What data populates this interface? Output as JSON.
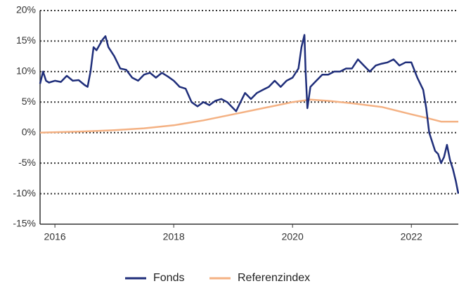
{
  "chart_data": {
    "type": "line",
    "xlim": [
      2015.75,
      2022.79
    ],
    "xticks": [
      2016,
      2018,
      2020,
      2022
    ],
    "ylim": [
      -15,
      20
    ],
    "yticks": [
      {
        "value": -15,
        "label": "-15%"
      },
      {
        "value": -10,
        "label": "-10%"
      },
      {
        "value": -5,
        "label": "-5%"
      },
      {
        "value": 0,
        "label": "0%"
      },
      {
        "value": 5,
        "label": "5%"
      },
      {
        "value": 10,
        "label": "10%"
      },
      {
        "value": 15,
        "label": "15%"
      },
      {
        "value": 20,
        "label": "20%"
      }
    ],
    "grid": true,
    "legend": "bottom",
    "series": [
      {
        "name": "Fonds",
        "color": "#1f2e7a",
        "x": [
          2015.75,
          2015.8,
          2015.85,
          2015.9,
          2016.0,
          2016.1,
          2016.2,
          2016.3,
          2016.4,
          2016.5,
          2016.55,
          2016.6,
          2016.65,
          2016.7,
          2016.8,
          2016.85,
          2016.9,
          2017.0,
          2017.1,
          2017.2,
          2017.3,
          2017.4,
          2017.5,
          2017.6,
          2017.7,
          2017.8,
          2017.9,
          2018.0,
          2018.1,
          2018.2,
          2018.3,
          2018.4,
          2018.5,
          2018.6,
          2018.7,
          2018.8,
          2018.9,
          2019.0,
          2019.05,
          2019.1,
          2019.2,
          2019.3,
          2019.4,
          2019.5,
          2019.6,
          2019.7,
          2019.8,
          2019.9,
          2020.0,
          2020.1,
          2020.15,
          2020.2,
          2020.22,
          2020.25,
          2020.3,
          2020.4,
          2020.5,
          2020.6,
          2020.7,
          2020.8,
          2020.9,
          2021.0,
          2021.1,
          2021.2,
          2021.3,
          2021.4,
          2021.5,
          2021.6,
          2021.7,
          2021.8,
          2021.9,
          2022.0,
          2022.1,
          2022.2,
          2022.25,
          2022.3,
          2022.4,
          2022.45,
          2022.5,
          2022.55,
          2022.6,
          2022.65,
          2022.7,
          2022.75,
          2022.79
        ],
        "values": [
          8,
          10,
          8.5,
          8.2,
          8.5,
          8.3,
          9.3,
          8.5,
          8.6,
          7.8,
          7.5,
          10,
          14,
          13.5,
          15.2,
          15.8,
          14,
          12.5,
          10.5,
          10.3,
          9,
          8.5,
          9.5,
          9.8,
          9,
          9.8,
          9.2,
          8.5,
          7.5,
          7.2,
          5,
          4.3,
          5,
          4.5,
          5.2,
          5.5,
          5,
          4,
          3.5,
          4.5,
          6.5,
          5.5,
          6.5,
          7,
          7.5,
          8.5,
          7.5,
          8.5,
          9,
          10.5,
          14,
          16,
          10,
          4,
          7.5,
          8.5,
          9.5,
          9.5,
          10,
          10,
          10.5,
          10.5,
          12,
          11,
          10,
          11,
          11.3,
          11.5,
          12,
          11,
          11.5,
          11.5,
          9,
          7,
          4,
          0,
          -3,
          -3.5,
          -5,
          -4,
          -2,
          -4.5,
          -6,
          -8,
          -10
        ]
      },
      {
        "name": "Referenzindex",
        "color": "#f4b183",
        "x": [
          2015.75,
          2016.5,
          2017.0,
          2017.5,
          2018.0,
          2018.5,
          2019.0,
          2019.5,
          2020.0,
          2020.3,
          2020.6,
          2021.0,
          2021.5,
          2022.0,
          2022.3,
          2022.5,
          2022.79
        ],
        "values": [
          0,
          0.2,
          0.4,
          0.7,
          1.2,
          2,
          3,
          4,
          5,
          5.4,
          5.2,
          4.8,
          4.2,
          3,
          2.3,
          1.8,
          1.8
        ]
      }
    ]
  }
}
